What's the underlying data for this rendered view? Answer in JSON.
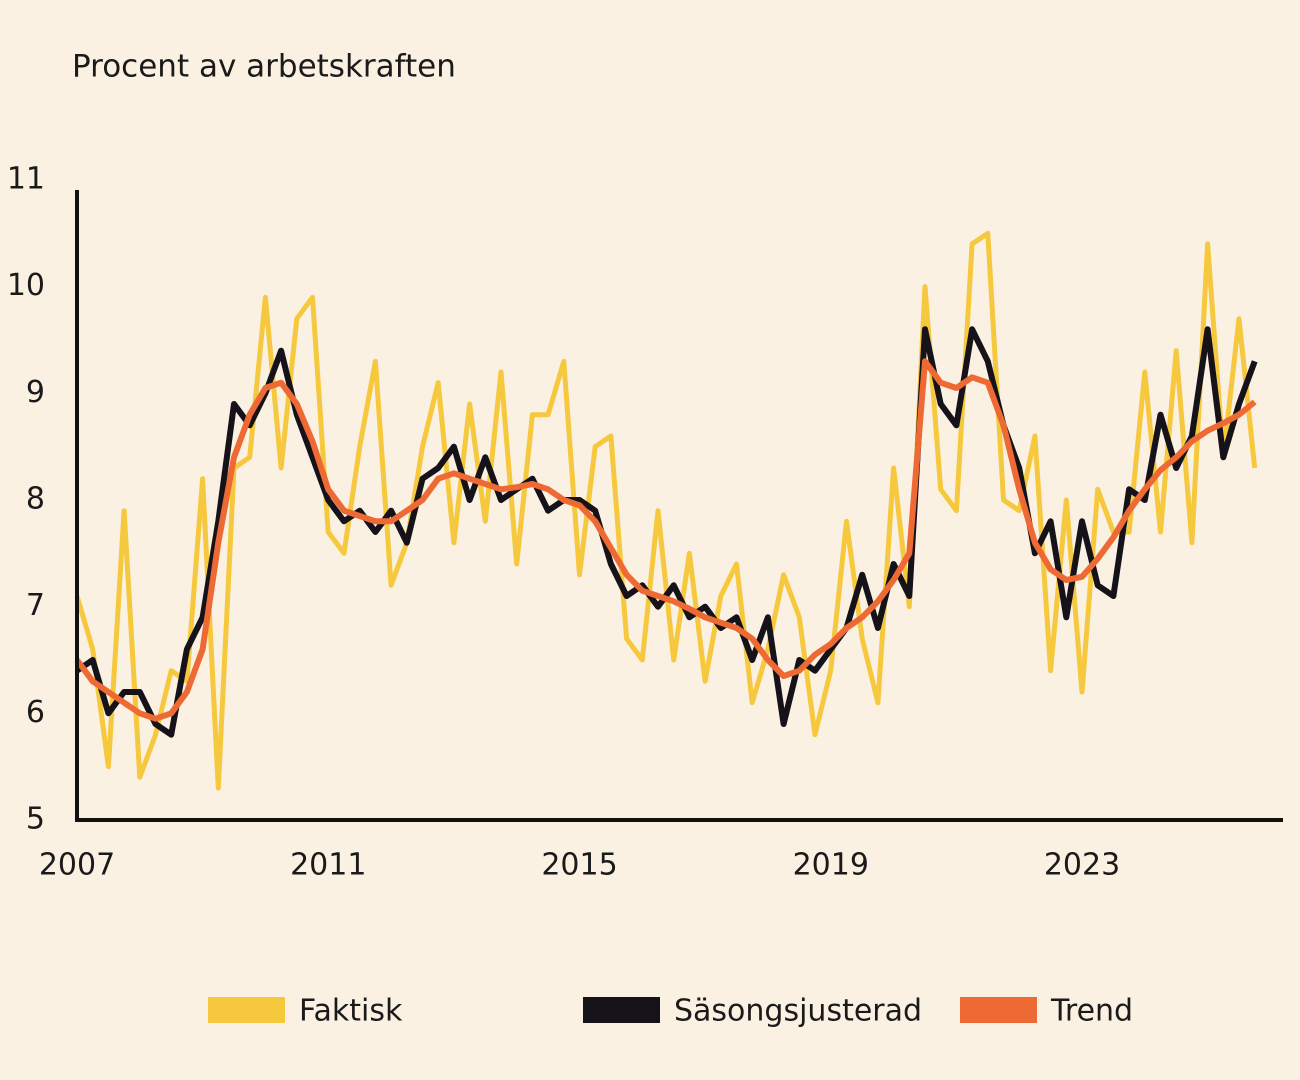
{
  "chart_data": {
    "type": "line",
    "title": "Procent av arbetskraften",
    "x": [
      2007,
      2007.25,
      2007.5,
      2007.75,
      2008,
      2008.25,
      2008.5,
      2008.75,
      2009,
      2009.25,
      2009.5,
      2009.75,
      2010,
      2010.25,
      2010.5,
      2010.75,
      2011,
      2011.25,
      2011.5,
      2011.75,
      2012,
      2012.25,
      2012.5,
      2012.75,
      2013,
      2013.25,
      2013.5,
      2013.75,
      2014,
      2014.25,
      2014.5,
      2014.75,
      2015,
      2015.25,
      2015.5,
      2015.75,
      2016,
      2016.25,
      2016.5,
      2016.75,
      2017,
      2017.25,
      2017.5,
      2017.75,
      2018,
      2018.25,
      2018.5,
      2018.75,
      2019,
      2019.25,
      2019.5,
      2019.75,
      2020,
      2020.25,
      2020.5,
      2020.75,
      2021,
      2021.25,
      2021.5,
      2021.75,
      2022,
      2022.25,
      2022.5,
      2022.75,
      2023,
      2023.25,
      2023.5,
      2023.75,
      2024,
      2024.25,
      2024.5,
      2024.75,
      2025,
      2025.25,
      2025.5,
      2025.75
    ],
    "series": [
      {
        "name": "Faktisk",
        "color": "#f5c83e",
        "values": [
          7.1,
          6.6,
          5.5,
          7.9,
          5.4,
          5.8,
          6.4,
          6.3,
          8.2,
          5.3,
          8.3,
          8.4,
          9.9,
          8.3,
          9.7,
          9.9,
          7.7,
          7.5,
          8.5,
          9.3,
          7.2,
          7.6,
          8.5,
          9.1,
          7.6,
          8.9,
          7.8,
          9.2,
          7.4,
          8.8,
          8.8,
          9.3,
          7.3,
          8.5,
          8.6,
          6.7,
          6.5,
          7.9,
          6.5,
          7.5,
          6.3,
          7.1,
          7.4,
          6.1,
          6.6,
          7.3,
          6.9,
          5.8,
          6.4,
          7.8,
          6.7,
          6.1,
          8.3,
          7.0,
          10.0,
          8.1,
          7.9,
          10.4,
          10.5,
          8.0,
          7.9,
          8.6,
          6.4,
          8.0,
          6.2,
          8.1,
          7.7,
          7.7,
          9.2,
          7.7,
          9.4,
          7.6,
          10.4,
          8.4,
          9.7,
          8.3
        ]
      },
      {
        "name": "Säsongsjusterad",
        "color": "#15121a",
        "values": [
          6.4,
          6.5,
          6.0,
          6.2,
          6.2,
          5.9,
          5.8,
          6.6,
          6.9,
          7.8,
          8.9,
          8.7,
          9.0,
          9.4,
          8.8,
          8.4,
          8.0,
          7.8,
          7.9,
          7.7,
          7.9,
          7.6,
          8.2,
          8.3,
          8.5,
          8.0,
          8.4,
          8.0,
          8.1,
          8.2,
          7.9,
          8.0,
          8.0,
          7.9,
          7.4,
          7.1,
          7.2,
          7.0,
          7.2,
          6.9,
          7.0,
          6.8,
          6.9,
          6.5,
          6.9,
          5.9,
          6.5,
          6.4,
          6.6,
          6.8,
          7.3,
          6.8,
          7.4,
          7.1,
          9.6,
          8.9,
          8.7,
          9.6,
          9.3,
          8.7,
          8.3,
          7.5,
          7.8,
          6.9,
          7.8,
          7.2,
          7.1,
          8.1,
          8.0,
          8.8,
          8.3,
          8.6,
          9.6,
          8.4,
          8.9,
          9.3
        ]
      },
      {
        "name": "Trend",
        "color": "#ee6a35",
        "values": [
          6.5,
          6.3,
          6.2,
          6.1,
          6.0,
          5.95,
          6.0,
          6.2,
          6.6,
          7.6,
          8.4,
          8.8,
          9.05,
          9.1,
          8.9,
          8.55,
          8.1,
          7.9,
          7.85,
          7.8,
          7.8,
          7.9,
          8.0,
          8.2,
          8.25,
          8.2,
          8.15,
          8.1,
          8.12,
          8.15,
          8.1,
          8.0,
          7.95,
          7.8,
          7.55,
          7.3,
          7.15,
          7.1,
          7.05,
          6.98,
          6.9,
          6.85,
          6.8,
          6.7,
          6.5,
          6.35,
          6.4,
          6.55,
          6.65,
          6.8,
          6.9,
          7.05,
          7.25,
          7.5,
          9.3,
          9.1,
          9.05,
          9.15,
          9.1,
          8.7,
          8.1,
          7.6,
          7.35,
          7.25,
          7.28,
          7.45,
          7.65,
          7.9,
          8.1,
          8.28,
          8.4,
          8.55,
          8.65,
          8.72,
          8.8,
          8.92
        ]
      }
    ],
    "xlim": [
      2007,
      2026.2
    ],
    "xticks": [
      2007,
      2011,
      2015,
      2019,
      2023
    ],
    "ylim": [
      5,
      11
    ],
    "yticks": [
      5,
      6,
      7,
      8,
      9,
      10,
      11
    ]
  }
}
